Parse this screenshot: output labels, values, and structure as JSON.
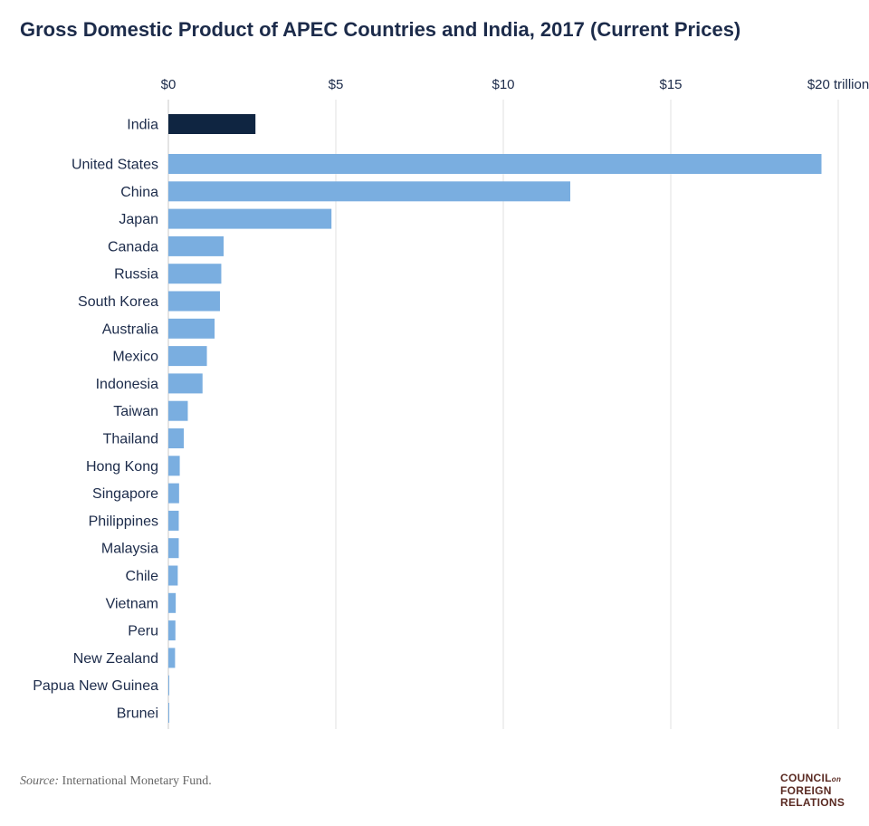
{
  "chart_data": {
    "type": "bar",
    "orientation": "horizontal",
    "title": "Gross Domestic Product of APEC Countries and India, 2017 (Current Prices)",
    "xlabel": "",
    "ylabel": "",
    "xlim": [
      0,
      20
    ],
    "x_ticks": [
      0,
      5,
      10,
      15,
      20
    ],
    "x_tick_labels": [
      "$0",
      "$5",
      "$10",
      "$15",
      "$20 trillion"
    ],
    "grid": "vertical",
    "categories": [
      "India",
      "United States",
      "China",
      "Japan",
      "Canada",
      "Russia",
      "South Korea",
      "Australia",
      "Mexico",
      "Indonesia",
      "Taiwan",
      "Thailand",
      "Hong Kong",
      "Singapore",
      "Philippines",
      "Malaysia",
      "Chile",
      "Vietnam",
      "Peru",
      "New Zealand",
      "Papua New Guinea",
      "Brunei"
    ],
    "values": [
      2.6,
      19.5,
      12.0,
      4.87,
      1.65,
      1.58,
      1.54,
      1.38,
      1.15,
      1.02,
      0.58,
      0.46,
      0.34,
      0.32,
      0.31,
      0.31,
      0.28,
      0.22,
      0.21,
      0.2,
      0.02,
      0.01
    ],
    "colors": {
      "highlight": "#0f2541",
      "default": "#7aaee0"
    }
  },
  "source_label": "Source:",
  "source_text": " International Monetary Fund.",
  "logo": {
    "line1": "COUNCIL",
    "on": "on",
    "line2": "FOREIGN",
    "line3": "RELATIONS"
  }
}
